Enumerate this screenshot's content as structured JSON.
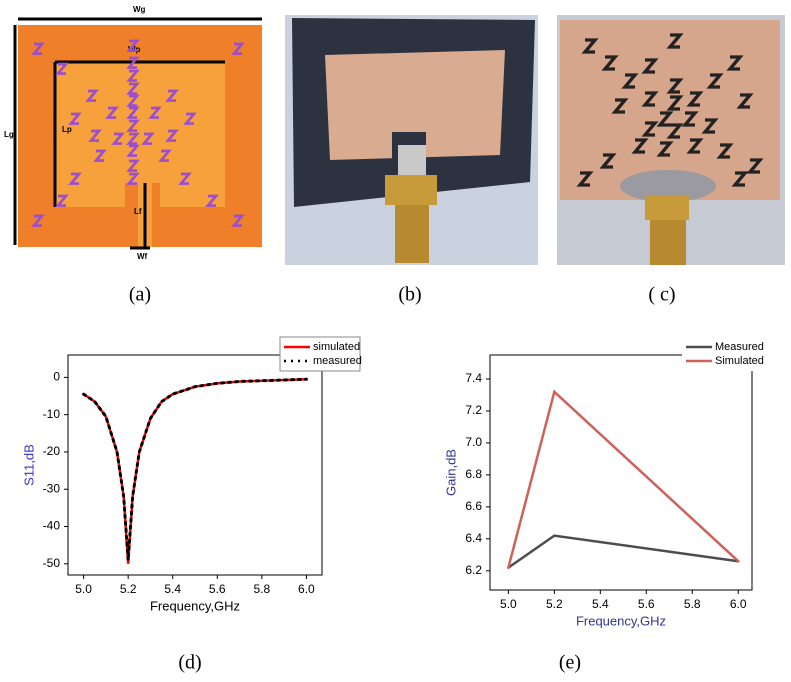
{
  "panels": {
    "labels": [
      "(a)",
      "(b)",
      "( c)",
      "(d)",
      "(e)"
    ]
  },
  "diagram_a": {
    "labels": {
      "wg": "Wg",
      "wp": "Wp",
      "lg": "Lg",
      "lp": "Lp",
      "lf": "Lf",
      "wf": "Wf"
    }
  },
  "chart_data": [
    {
      "type": "line",
      "xlabel": "Frequency,GHz",
      "ylabel": "S11,dB",
      "x": [
        5.0,
        5.05,
        5.1,
        5.15,
        5.18,
        5.2,
        5.22,
        5.25,
        5.3,
        5.35,
        5.4,
        5.5,
        5.6,
        5.7,
        5.8,
        5.9,
        6.0
      ],
      "series": [
        {
          "name": "simulated",
          "color": "#ff0000",
          "linestyle": "solid",
          "values": [
            -4.5,
            -6.5,
            -10.5,
            -20,
            -32,
            -50,
            -32,
            -20,
            -11,
            -6.5,
            -4.5,
            -2.5,
            -1.6,
            -1.1,
            -0.9,
            -0.7,
            -0.5
          ]
        },
        {
          "name": "measured",
          "color": "#000000",
          "linestyle": "dotted",
          "values": [
            -4.5,
            -6.5,
            -10.5,
            -20,
            -32,
            -49,
            -32,
            -20,
            -11,
            -6.5,
            -4.5,
            -2.5,
            -1.6,
            -1.1,
            -0.9,
            -0.7,
            -0.5
          ]
        }
      ],
      "xlim": [
        4.93,
        6.07
      ],
      "ylim": [
        -53,
        6
      ],
      "xticks": [
        {
          "value": 5,
          "label": "5.0"
        },
        5.2,
        5.4,
        5.6,
        5.8,
        {
          "value": 6,
          "label": "6.0"
        }
      ],
      "yticks": [
        0,
        -10,
        -20,
        -30,
        -40,
        -50
      ],
      "legend": "upper right",
      "grid": false
    },
    {
      "type": "line",
      "xlabel": "Frequency,GHz",
      "ylabel": "Gain,dB",
      "x": [
        5.0,
        5.2,
        6.0
      ],
      "series": [
        {
          "name": "Measured",
          "color": "#4d4d4d",
          "linestyle": "solid",
          "values": [
            6.22,
            6.42,
            6.26
          ]
        },
        {
          "name": "Simulated",
          "color": "#d0605a",
          "linestyle": "solid",
          "values": [
            6.22,
            7.32,
            6.26
          ]
        }
      ],
      "xlim": [
        4.92,
        6.06
      ],
      "ylim": [
        6.08,
        7.55
      ],
      "xticks": [
        {
          "value": 5,
          "label": "5.0"
        },
        5.2,
        5.4,
        5.6,
        5.8,
        {
          "value": 6,
          "label": "6.0"
        }
      ],
      "yticks": [
        6.2,
        6.4,
        6.6,
        6.8,
        {
          "value": 7,
          "label": "7.0"
        },
        7.2,
        7.4
      ],
      "legend": "upper right",
      "grid": false
    }
  ]
}
